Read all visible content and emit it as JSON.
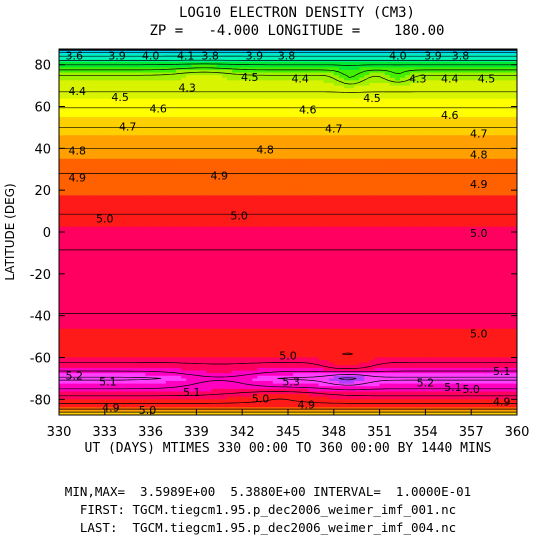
{
  "chart_data": {
    "type": "contour",
    "title": "LOG10 ELECTRON DENSITY (CM3)",
    "subtitle": "ZP =   -4.000 LONGITUDE =    180.00",
    "xlabel": "UT (DAYS) MTIMES 330 00:00 TO 360 00:00 BY 1440 MINS",
    "ylabel": "LATITUDE (DEG)",
    "xlim": [
      330,
      360
    ],
    "ylim": [
      -87.5,
      87.5
    ],
    "x_ticks": [
      "330",
      "333",
      "336",
      "339",
      "342",
      "345",
      "348",
      "351",
      "354",
      "357",
      "360"
    ],
    "y_ticks": [
      "80",
      "60",
      "40",
      "20",
      "0",
      "-20",
      "-40",
      "-60",
      "-80"
    ],
    "min": 3.5989,
    "max": 5.388,
    "interval": 0.1,
    "colorbands": [
      {
        "level": 3.6,
        "color": "#2d58d6"
      },
      {
        "level": 3.7,
        "color": "#1e90ff"
      },
      {
        "level": 3.8,
        "color": "#00bfff"
      },
      {
        "level": 3.9,
        "color": "#00e0e8"
      },
      {
        "level": 4.0,
        "color": "#00f0c0"
      },
      {
        "level": 4.1,
        "color": "#00f090"
      },
      {
        "level": 4.2,
        "color": "#00e830"
      },
      {
        "level": 4.3,
        "color": "#40f000"
      },
      {
        "level": 4.4,
        "color": "#a0f000"
      },
      {
        "level": 4.5,
        "color": "#d8f400"
      },
      {
        "level": 4.6,
        "color": "#ffff00"
      },
      {
        "level": 4.7,
        "color": "#ffd000"
      },
      {
        "level": 4.8,
        "color": "#ffa000"
      },
      {
        "level": 4.9,
        "color": "#ff6000"
      },
      {
        "level": 5.0,
        "color": "#ff1a1a"
      },
      {
        "level": 5.1,
        "color": "#ff0060"
      },
      {
        "level": 5.2,
        "color": "#ff00c0"
      },
      {
        "level": 5.3,
        "color": "#ff40ff"
      },
      {
        "level": 5.4,
        "color": "#b040ff"
      }
    ],
    "contour_labels": [
      {
        "x": 331.0,
        "y": 84.5,
        "text": "3.6"
      },
      {
        "x": 333.8,
        "y": 84.5,
        "text": "3.9"
      },
      {
        "x": 336.0,
        "y": 84.5,
        "text": "4.0"
      },
      {
        "x": 338.3,
        "y": 84.5,
        "text": "4.1"
      },
      {
        "x": 339.9,
        "y": 84.5,
        "text": "3.8"
      },
      {
        "x": 342.8,
        "y": 84.5,
        "text": "3.9"
      },
      {
        "x": 344.9,
        "y": 84.5,
        "text": "3.8"
      },
      {
        "x": 352.2,
        "y": 84.5,
        "text": "4.0"
      },
      {
        "x": 354.5,
        "y": 84.5,
        "text": "3.9"
      },
      {
        "x": 356.3,
        "y": 84.5,
        "text": "3.8"
      },
      {
        "x": 342.5,
        "y": 74.0,
        "text": "4.5"
      },
      {
        "x": 345.8,
        "y": 73.5,
        "text": "4.4"
      },
      {
        "x": 353.5,
        "y": 73.5,
        "text": "4.3"
      },
      {
        "x": 355.6,
        "y": 73.5,
        "text": "4.4"
      },
      {
        "x": 358.0,
        "y": 73.5,
        "text": "4.5"
      },
      {
        "x": 331.2,
        "y": 67.5,
        "text": "4.4"
      },
      {
        "x": 338.4,
        "y": 69.0,
        "text": "4.3"
      },
      {
        "x": 334.0,
        "y": 64.5,
        "text": "4.5"
      },
      {
        "x": 350.5,
        "y": 64.0,
        "text": "4.5"
      },
      {
        "x": 336.5,
        "y": 59.0,
        "text": "4.6"
      },
      {
        "x": 346.3,
        "y": 58.5,
        "text": "4.6"
      },
      {
        "x": 355.6,
        "y": 56.0,
        "text": "4.6"
      },
      {
        "x": 334.5,
        "y": 50.5,
        "text": "4.7"
      },
      {
        "x": 348.0,
        "y": 49.5,
        "text": "4.7"
      },
      {
        "x": 357.5,
        "y": 47.0,
        "text": "4.7"
      },
      {
        "x": 331.2,
        "y": 39.0,
        "text": "4.8"
      },
      {
        "x": 343.5,
        "y": 39.5,
        "text": "4.8"
      },
      {
        "x": 357.5,
        "y": 37.0,
        "text": "4.8"
      },
      {
        "x": 331.2,
        "y": 26.0,
        "text": "4.9"
      },
      {
        "x": 340.5,
        "y": 27.0,
        "text": "4.9"
      },
      {
        "x": 357.5,
        "y": 23.0,
        "text": "4.9"
      },
      {
        "x": 333.0,
        "y": 6.5,
        "text": "5.0"
      },
      {
        "x": 341.8,
        "y": 8.0,
        "text": "5.0"
      },
      {
        "x": 357.5,
        "y": -0.5,
        "text": "5.0"
      },
      {
        "x": 357.5,
        "y": -48.5,
        "text": "5.0"
      },
      {
        "x": 345.0,
        "y": -59.0,
        "text": "5.0"
      },
      {
        "x": 331.0,
        "y": -68.5,
        "text": "5.2"
      },
      {
        "x": 333.2,
        "y": -71.5,
        "text": "5.1"
      },
      {
        "x": 338.7,
        "y": -76.5,
        "text": "5.1"
      },
      {
        "x": 345.2,
        "y": -71.5,
        "text": "5.3"
      },
      {
        "x": 354.0,
        "y": -72.0,
        "text": "5.2"
      },
      {
        "x": 355.8,
        "y": -74.0,
        "text": "5.1"
      },
      {
        "x": 359.0,
        "y": -66.5,
        "text": "5.1"
      },
      {
        "x": 357.0,
        "y": -75.0,
        "text": "5.0"
      },
      {
        "x": 343.2,
        "y": -79.5,
        "text": "5.0"
      },
      {
        "x": 346.2,
        "y": -82.5,
        "text": "4.9"
      },
      {
        "x": 333.4,
        "y": -84.0,
        "text": "4.9"
      },
      {
        "x": 335.8,
        "y": -85.0,
        "text": "5.0"
      },
      {
        "x": 359.0,
        "y": -81.0,
        "text": "4.9"
      }
    ]
  },
  "footer": {
    "minmax": "MIN,MAX=  3.5989E+00  5.3880E+00 INTERVAL=  1.0000E-01",
    "first": "FIRST: TGCM.tiegcm1.95.p_dec2006_weimer_imf_001.nc",
    "last": "LAST:  TGCM.tiegcm1.95.p_dec2006_weimer_imf_004.nc"
  }
}
